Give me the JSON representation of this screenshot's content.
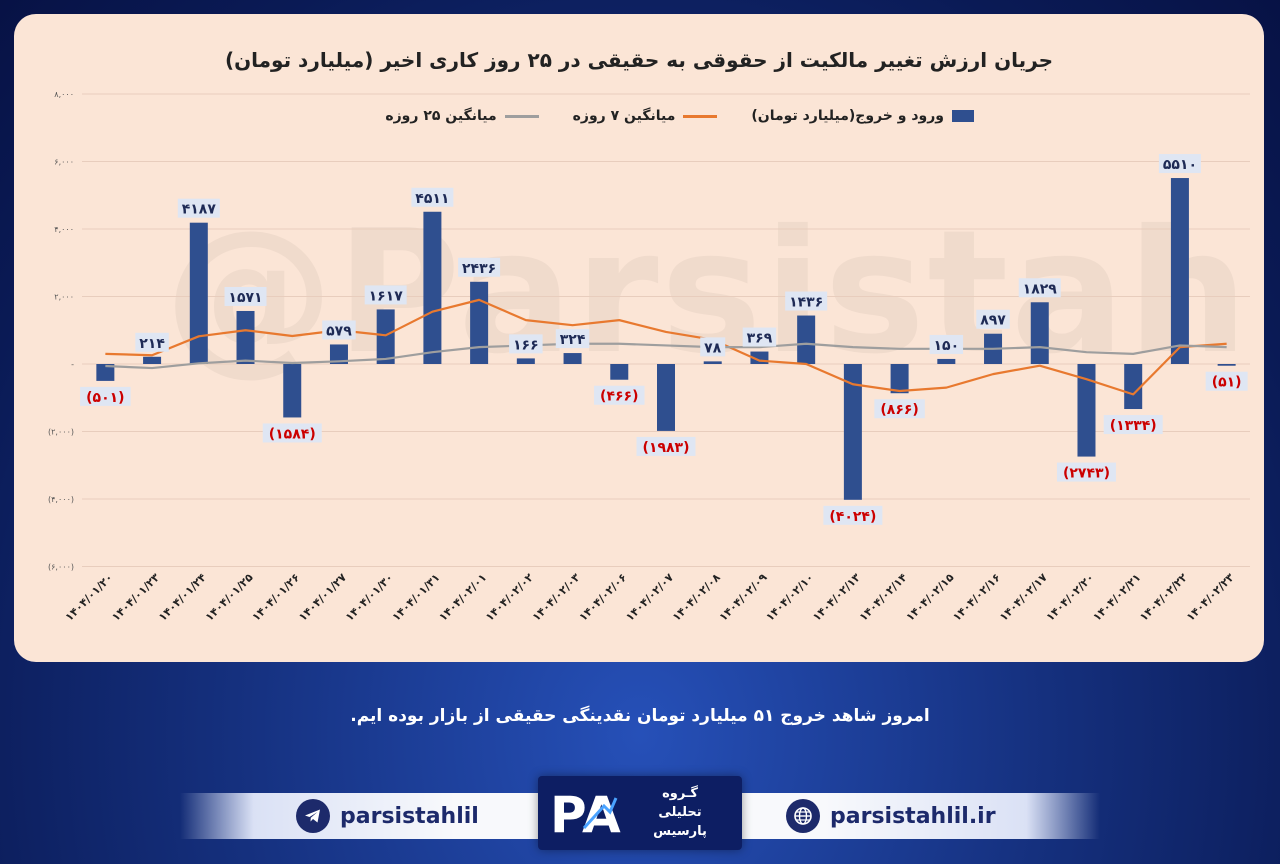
{
  "chart_data": {
    "type": "bar",
    "title": "جریان ارزش تغییر مالکیت از حقوقی به حقیقی در ۲۵ روز کاری اخیر (میلیارد تومان)",
    "categories": [
      "۱۴۰۴/۰۱/۲۰",
      "۱۴۰۴/۰۱/۲۳",
      "۱۴۰۴/۰۱/۲۴",
      "۱۴۰۴/۰۱/۲۵",
      "۱۴۰۴/۰۱/۲۶",
      "۱۴۰۴/۰۱/۲۷",
      "۱۴۰۴/۰۱/۳۰",
      "۱۴۰۴/۰۱/۳۱",
      "۱۴۰۴/۰۲/۰۱",
      "۱۴۰۴/۰۲/۰۲",
      "۱۴۰۴/۰۲/۰۳",
      "۱۴۰۴/۰۲/۰۶",
      "۱۴۰۴/۰۲/۰۷",
      "۱۴۰۴/۰۲/۰۸",
      "۱۴۰۴/۰۲/۰۹",
      "۱۴۰۴/۰۲/۱۰",
      "۱۴۰۴/۰۲/۱۳",
      "۱۴۰۴/۰۲/۱۴",
      "۱۴۰۴/۰۲/۱۵",
      "۱۴۰۴/۰۲/۱۶",
      "۱۴۰۴/۰۲/۱۷",
      "۱۴۰۴/۰۲/۲۰",
      "۱۴۰۴/۰۲/۲۱",
      "۱۴۰۴/۰۲/۲۲",
      "۱۴۰۴/۰۲/۲۳"
    ],
    "series": [
      {
        "name": "ورود و خروج(میلیارد تومان)",
        "kind": "bar",
        "color": "#2f4f8f",
        "values": [
          -501,
          214,
          4187,
          1571,
          -1584,
          579,
          1617,
          4511,
          2436,
          166,
          324,
          -466,
          -1983,
          78,
          369,
          1436,
          -4024,
          -866,
          150,
          897,
          1829,
          -2743,
          -1334,
          5510,
          -51
        ]
      },
      {
        "name": "میانگین ۷ روزه",
        "kind": "line",
        "color": "#e8792f",
        "values": [
          300,
          260,
          820,
          1000,
          830,
          1000,
          850,
          1550,
          1900,
          1300,
          1150,
          1300,
          950,
          720,
          100,
          0,
          -600,
          -800,
          -700,
          -300,
          -50,
          -450,
          -900,
          500,
          600
        ]
      },
      {
        "name": "میانگین ۲۵ روزه",
        "kind": "line",
        "color": "#9e9e9e",
        "values": [
          -60,
          -120,
          20,
          100,
          30,
          80,
          150,
          350,
          500,
          550,
          600,
          600,
          550,
          500,
          500,
          600,
          500,
          450,
          450,
          450,
          500,
          350,
          300,
          550,
          500
        ]
      }
    ],
    "data_labels": [
      "(۵۰۱)",
      "۲۱۴",
      "۴۱۸۷",
      "۱۵۷۱",
      "(۱۵۸۴)",
      "۵۷۹",
      "۱۶۱۷",
      "۴۵۱۱",
      "۲۴۳۶",
      "۱۶۶",
      "۳۲۴",
      "(۴۶۶)",
      "(۱۹۸۳)",
      "۷۸",
      "۳۶۹",
      "۱۴۳۶",
      "(۴۰۲۴)",
      "(۸۶۶)",
      "۱۵۰",
      "۸۹۷",
      "۱۸۲۹",
      "(۲۷۴۳)",
      "(۱۳۳۴)",
      "۵۵۱۰",
      "(۵۱)"
    ],
    "y_ticks": [
      8000,
      6000,
      4000,
      2000,
      0,
      -2000,
      -4000,
      -6000
    ],
    "y_tick_labels": [
      "۸,۰۰۰",
      "۶,۰۰۰",
      "۴,۰۰۰",
      "۲,۰۰۰",
      "-",
      "(۲,۰۰۰)",
      "(۴,۰۰۰)",
      "(۶,۰۰۰)"
    ],
    "ylim": [
      -6000,
      8000
    ],
    "grid": true,
    "legend_position": "top",
    "colors": {
      "positive_label": "#1e2a55",
      "negative_label": "#cc0000",
      "label_bg": "#dfe6f3"
    }
  },
  "watermark": "@Parsistahlil",
  "caption": "امروز شاهد خروج ۵۱ میلیارد تومان نقدینگی حقیقی از بازار بوده ایم.",
  "footer": {
    "telegram_handle": "parsistahlil",
    "website": "parsistahlil.ir",
    "logo_text": [
      "گـروه",
      "تحلیلی",
      "پارسیس"
    ],
    "logo_mark": "PA"
  }
}
